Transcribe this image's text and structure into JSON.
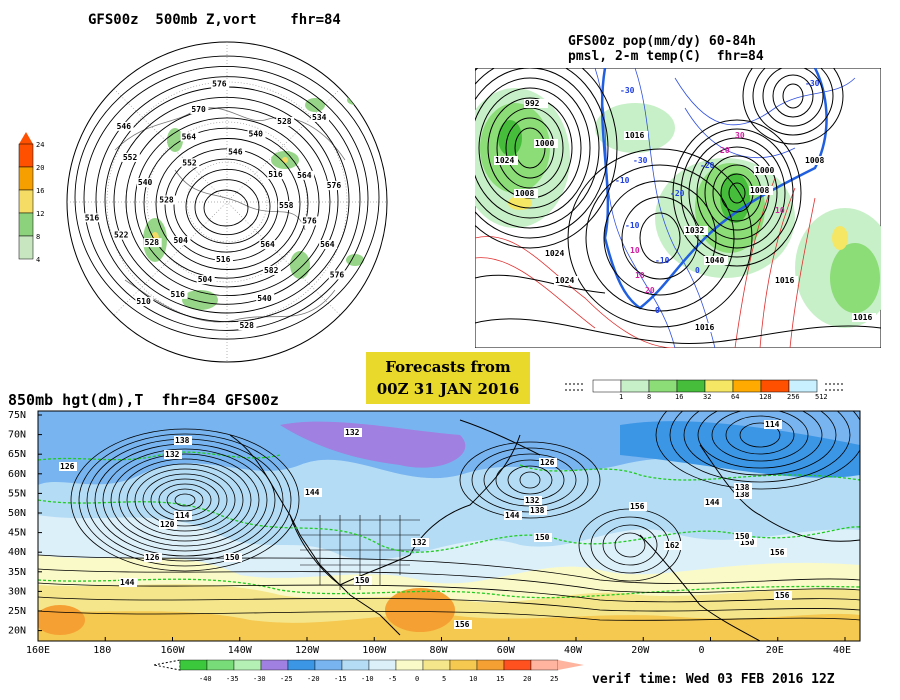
{
  "colors": {
    "precip_scale": [
      "#ffffff",
      "#c8f0c8",
      "#8cdc78",
      "#46be3c",
      "#f5e664",
      "#ffaa00",
      "#ff5000",
      "#c8f0ff"
    ],
    "vort_scale": [
      "#c8e6c0",
      "#8cd27c",
      "#f5dc64",
      "#f5a000",
      "#ff5000"
    ],
    "temp_scale": [
      "#3cc83c",
      "#78dc78",
      "#b4f0b4",
      "#a080e0",
      "#3c96e6",
      "#78b4f0",
      "#b4dcf5",
      "#dcf0fa",
      "#fafac8",
      "#f5e68c",
      "#f5c850",
      "#f5a032",
      "#ff5020",
      "#ffb4a0"
    ]
  },
  "panel_a": {
    "title": "GFS00z  500mb Z,vort    fhr=84",
    "chart_data": {
      "type": "contour-map",
      "projection": "polar-stereographic",
      "field": "500mb geopotential height (dam) and vorticity",
      "contour_labels": [
        "558",
        "576",
        "564",
        "576",
        "564",
        "582",
        "540",
        "528",
        "516",
        "504",
        "516",
        "510",
        "504",
        "528",
        "522",
        "516",
        "528",
        "540",
        "552",
        "546",
        "552",
        "564",
        "570",
        "576",
        "546",
        "540",
        "528",
        "534",
        "516",
        "564",
        "576"
      ],
      "colorbar": {
        "levels": [
          "24",
          "20",
          "16",
          "12",
          "8",
          "4"
        ],
        "orientation": "vertical"
      }
    }
  },
  "panel_b": {
    "title_line1": "GFS00z pop(mm/dy) 60-84h",
    "title_line2": "pmsl, 2-m temp(C)  fhr=84",
    "chart_data": {
      "type": "contour-map",
      "field": "precipitation, mean sea level pressure (mb), 2-m temperature (C)",
      "pressure_labels": [
        "992",
        "1000",
        "1008",
        "1016",
        "1024",
        "1032",
        "1040",
        "1016",
        "1024",
        "1008",
        "1000",
        "1024",
        "1016",
        "1008",
        "1016"
      ],
      "temp_labels": [
        "-30",
        "-30",
        "-20",
        "-20",
        "-10",
        "-10",
        "-10",
        "0",
        "0",
        "10",
        "10",
        "10",
        "20",
        "20",
        "30",
        "-30"
      ],
      "colorbar": {
        "levels": [
          "1",
          "8",
          "16",
          "32",
          "64",
          "128",
          "256",
          "512"
        ],
        "orientation": "horizontal"
      }
    }
  },
  "banner": {
    "line1": "Forecasts from",
    "line2": "00Z 31 JAN 2016"
  },
  "panel_c": {
    "title": "850mb hgt(dm),T  fhr=84 GFS00z",
    "chart_data": {
      "type": "contour-map",
      "field": "850mb geopotential height (dm) and temperature (C)",
      "x_ticks": [
        "160E",
        "180",
        "160W",
        "140W",
        "120W",
        "100W",
        "80W",
        "60W",
        "40W",
        "20W",
        "0",
        "20E",
        "40E"
      ],
      "y_ticks": [
        "75N",
        "70N",
        "65N",
        "60N",
        "55N",
        "50N",
        "45N",
        "40N",
        "35N",
        "30N",
        "25N",
        "20N"
      ],
      "xlim": [
        "160E",
        "50E"
      ],
      "ylim": [
        "18N",
        "75N"
      ],
      "height_labels": [
        "138",
        "132",
        "126",
        "114",
        "120",
        "126",
        "144",
        "150",
        "132",
        "144",
        "132",
        "150",
        "156",
        "126",
        "132",
        "138",
        "144",
        "150",
        "156",
        "162",
        "150",
        "156",
        "114",
        "144",
        "138",
        "138",
        "150",
        "156"
      ],
      "colorbar": {
        "levels": [
          "-40",
          "-35",
          "-30",
          "-25",
          "-20",
          "-15",
          "-10",
          "-5",
          "0",
          "5",
          "10",
          "15",
          "20",
          "25"
        ],
        "orientation": "horizontal"
      }
    }
  },
  "verif": "verif time: Wed 03 FEB 2016 12Z"
}
